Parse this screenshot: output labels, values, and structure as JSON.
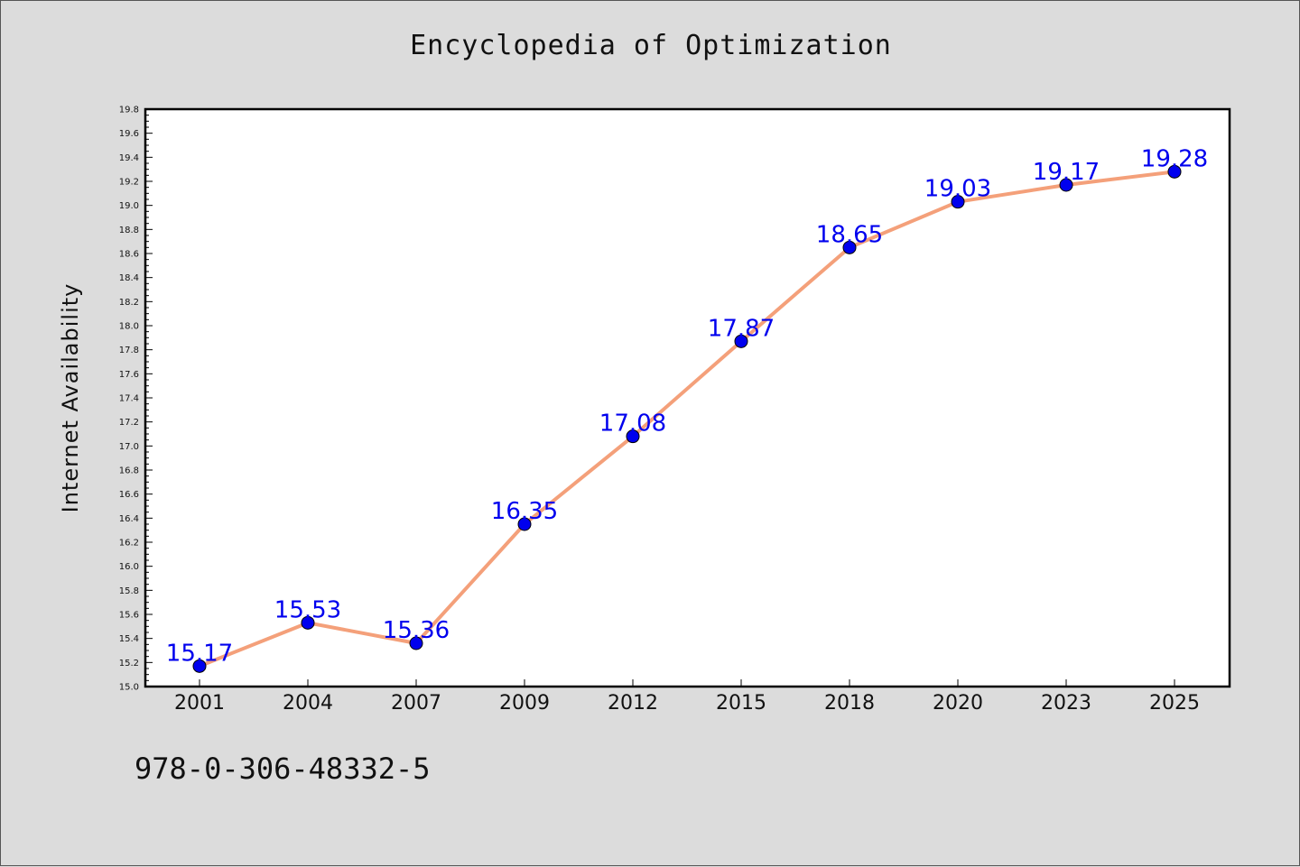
{
  "figure": {
    "title": "Encyclopedia of Optimization",
    "footer_text": "978-0-306-48332-5"
  },
  "chart_data": {
    "type": "line",
    "title": "Encyclopedia of Optimization",
    "xlabel": "",
    "ylabel": "Internet Availability",
    "categories": [
      "2001",
      "2004",
      "2007",
      "2009",
      "2012",
      "2015",
      "2018",
      "2020",
      "2023",
      "2025"
    ],
    "series": [
      {
        "values": [
          15.17,
          15.53,
          15.36,
          16.35,
          17.08,
          17.87,
          18.65,
          19.03,
          19.17,
          19.28
        ],
        "labels": [
          "15.17",
          "15.53",
          "15.36",
          "16.35",
          "17.08",
          "17.87",
          "18.65",
          "19.03",
          "19.17",
          "19.28"
        ],
        "line_color": "#f4a07a",
        "marker_color": "#0000ee",
        "label_color": "#0000ee"
      }
    ],
    "ylim": [
      15.0,
      19.8
    ],
    "y_major_step": 0.2,
    "y_ticks": [
      "15.0",
      "15.2",
      "15.4",
      "15.6",
      "15.8",
      "16.0",
      "16.2",
      "16.4",
      "16.6",
      "16.8",
      "17.0",
      "17.2",
      "17.4",
      "17.6",
      "17.8",
      "18.0",
      "18.2",
      "18.4",
      "18.6",
      "18.8",
      "19.0",
      "19.2",
      "19.4",
      "19.6",
      "19.8"
    ],
    "grid": false,
    "legend": false
  }
}
